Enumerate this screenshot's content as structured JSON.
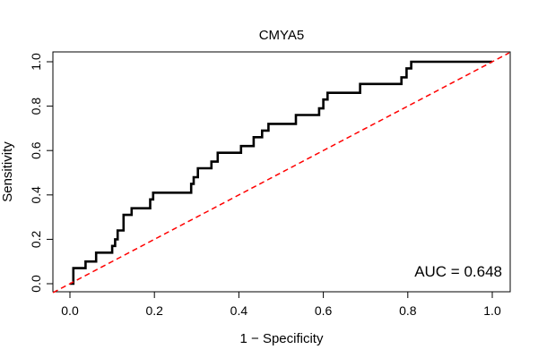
{
  "chart_data": {
    "type": "line",
    "title": "CMYA5",
    "xlabel": "1 − Specificity",
    "ylabel": "Sensitivity",
    "xlim": [
      0,
      1
    ],
    "ylim": [
      0,
      1
    ],
    "xticks": [
      "0.0",
      "0.2",
      "0.4",
      "0.6",
      "0.8",
      "1.0"
    ],
    "yticks": [
      "0.0",
      "0.2",
      "0.4",
      "0.6",
      "0.8",
      "1.0"
    ],
    "grid": false,
    "annotation": "AUC = 0.648",
    "colors": {
      "curve": "#000000",
      "reference": "#ff0000"
    },
    "series": [
      {
        "style": "solid",
        "x": [
          0.0,
          0.008,
          0.008,
          0.037,
          0.037,
          0.062,
          0.062,
          0.1,
          0.1,
          0.107,
          0.107,
          0.113,
          0.113,
          0.127,
          0.127,
          0.146,
          0.146,
          0.19,
          0.19,
          0.197,
          0.197,
          0.287,
          0.287,
          0.293,
          0.293,
          0.303,
          0.303,
          0.335,
          0.335,
          0.35,
          0.35,
          0.405,
          0.405,
          0.435,
          0.435,
          0.455,
          0.455,
          0.47,
          0.47,
          0.535,
          0.535,
          0.59,
          0.59,
          0.6,
          0.6,
          0.61,
          0.61,
          0.687,
          0.687,
          0.785,
          0.785,
          0.797,
          0.797,
          0.808,
          0.808,
          1.0
        ],
        "y": [
          0.0,
          0.0,
          0.07,
          0.07,
          0.1,
          0.1,
          0.14,
          0.14,
          0.17,
          0.17,
          0.2,
          0.2,
          0.24,
          0.24,
          0.31,
          0.31,
          0.34,
          0.34,
          0.38,
          0.38,
          0.41,
          0.41,
          0.45,
          0.45,
          0.48,
          0.48,
          0.52,
          0.52,
          0.55,
          0.55,
          0.59,
          0.59,
          0.62,
          0.62,
          0.66,
          0.66,
          0.69,
          0.69,
          0.72,
          0.72,
          0.76,
          0.76,
          0.79,
          0.79,
          0.83,
          0.83,
          0.86,
          0.86,
          0.9,
          0.9,
          0.93,
          0.93,
          0.97,
          0.97,
          1.0,
          1.0
        ]
      },
      {
        "style": "dashed",
        "x": [
          0,
          1
        ],
        "y": [
          0,
          1
        ]
      }
    ]
  }
}
